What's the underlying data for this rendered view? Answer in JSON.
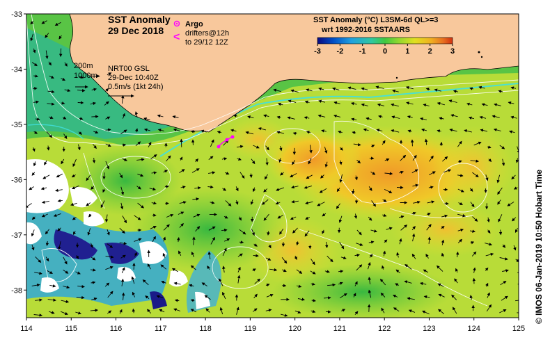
{
  "title": {
    "line1": "SST Anomaly",
    "line2": "29 Dec 2018"
  },
  "argo": {
    "label": "Argo",
    "drifter_symbol": "<",
    "drifters_line1": "drifters@12h",
    "drifters_line2": "to 29/12 12Z",
    "color": "#ff00ff"
  },
  "product": {
    "line1": "SST Anomaly (°C) L3SM-6d QL>=3",
    "line2": "wrt 1992-2016 SSTAARS"
  },
  "colorbar": {
    "ticks": [
      "-3",
      "-2",
      "-1",
      "0",
      "1",
      "2",
      "3"
    ],
    "min": -3,
    "max": 3,
    "colors": [
      "#0a0a80",
      "#0050c8",
      "#20a0e0",
      "#30c8a0",
      "#40c840",
      "#90d830",
      "#e0e020",
      "#f0b020",
      "#e87020",
      "#d03010"
    ]
  },
  "legend_left": {
    "contour1": "200m",
    "contour2": "1000m",
    "source": "NRT00 GSL",
    "time": "29-Dec 10:40Z",
    "scale": "0.5m/s (1kt 24h)"
  },
  "credit": "© IMOS 06-Jan-2019 10:50 Hobart Time",
  "axes": {
    "x_ticks": [
      "114",
      "115",
      "116",
      "117",
      "118",
      "119",
      "120",
      "121",
      "122",
      "123",
      "124",
      "125"
    ],
    "y_ticks": [
      "-33",
      "-34",
      "-35",
      "-36",
      "-37",
      "-38"
    ],
    "xlim": [
      114,
      125
    ],
    "ylim": [
      -38.5,
      -33
    ]
  },
  "colors": {
    "land": "#f8c89c",
    "ocean_base": "#a8d838",
    "nodata": "#ffffff",
    "contour": "#ffffff",
    "current_core": "#40e0e0"
  }
}
